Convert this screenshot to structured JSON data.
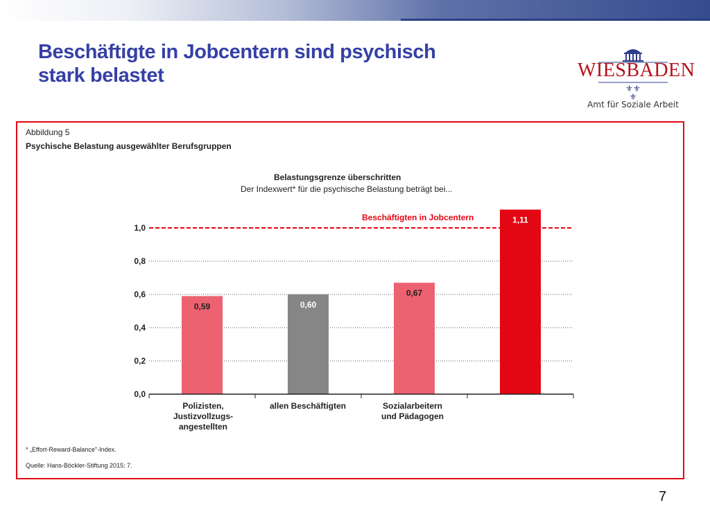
{
  "header": {
    "title_line1": "Beschäftigte in Jobcentern sind psychisch",
    "title_line2": "stark belastet"
  },
  "logo": {
    "name": "WIESBADEN",
    "subtitle": "Amt für Soziale Arbeit"
  },
  "figure": {
    "label": "Abbildung 5",
    "title": "Psychische Belastung ausgewählter Berufsgruppen",
    "headline": "Belastungsgrenze überschritten",
    "subheadline": "Der Indexwert* für die psychische Belastung beträgt bei...",
    "footnote": "* „Effort-Reward-Balance\"-Index.",
    "source": "Quelle: Hans-Böckler-Stiftung 2015: 7."
  },
  "chart_data": {
    "type": "bar",
    "categories": [
      [
        "Polizisten,",
        "Justizvollzugs-",
        "angestellten"
      ],
      [
        "allen Beschäftigten"
      ],
      [
        "Sozialarbeitern",
        "und Pädagogen"
      ],
      []
    ],
    "values": [
      0.59,
      0.6,
      0.67,
      1.11
    ],
    "value_labels": [
      "0,59",
      "0,60",
      "0,67",
      "1,11"
    ],
    "bar_colors": [
      "#ec6270",
      "#868686",
      "#ec6270",
      "#e30613"
    ],
    "value_label_colors": [
      "#222222",
      "#ffffff",
      "#222222",
      "#ffffff"
    ],
    "ylim": [
      0,
      1.1
    ],
    "yticks": [
      0,
      0.2,
      0.4,
      0.6,
      0.8,
      1.0
    ],
    "ytick_labels": [
      "0,0",
      "0,2",
      "0,4",
      "0,6",
      "0,8",
      "1,0"
    ],
    "reference_line": {
      "value": 1.0,
      "label": "Beschäftigten in Jobcentern",
      "color": "#e30613"
    },
    "grid": "dotted horizontal"
  },
  "page_number": "7"
}
